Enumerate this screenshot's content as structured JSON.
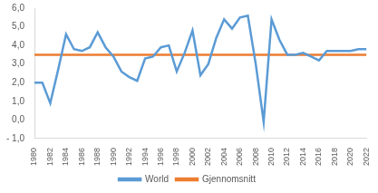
{
  "chart_data": {
    "type": "line",
    "categories": [
      1980,
      null,
      1982,
      null,
      1984,
      null,
      1986,
      null,
      1988,
      null,
      1990,
      null,
      1992,
      null,
      1994,
      null,
      1996,
      null,
      1998,
      null,
      2000,
      null,
      2002,
      null,
      2004,
      null,
      2006,
      null,
      2008,
      null,
      2010,
      null,
      2012,
      null,
      2014,
      null,
      2016,
      null,
      2018,
      null,
      2020,
      null,
      2022
    ],
    "series": [
      {
        "name": "World",
        "color": "#5b9bd5",
        "values": [
          2.0,
          2.0,
          0.9,
          2.7,
          4.6,
          3.8,
          3.7,
          3.9,
          4.7,
          3.9,
          3.4,
          2.6,
          2.3,
          2.1,
          3.3,
          3.4,
          3.9,
          4.0,
          2.6,
          3.6,
          4.8,
          2.4,
          3.0,
          4.4,
          5.4,
          4.9,
          5.5,
          5.6,
          3.0,
          -0.1,
          5.4,
          4.3,
          3.5,
          3.5,
          3.6,
          3.4,
          3.2,
          3.7,
          3.7,
          3.7,
          3.7,
          3.8,
          3.8
        ]
      },
      {
        "name": "Gjennomsnitt",
        "color": "#ed7d31",
        "values": [
          3.5,
          3.5,
          3.5,
          3.5,
          3.5,
          3.5,
          3.5,
          3.5,
          3.5,
          3.5,
          3.5,
          3.5,
          3.5,
          3.5,
          3.5,
          3.5,
          3.5,
          3.5,
          3.5,
          3.5,
          3.5,
          3.5,
          3.5,
          3.5,
          3.5,
          3.5,
          3.5,
          3.5,
          3.5,
          3.5,
          3.5,
          3.5,
          3.5,
          3.5,
          3.5,
          3.5,
          3.5,
          3.5,
          3.5,
          3.5,
          3.5,
          3.5,
          3.5
        ]
      }
    ],
    "ylim": [
      -1,
      6
    ],
    "yticks": [
      {
        "value": -1,
        "label": "- 1,0"
      },
      {
        "value": 0,
        "label": "0,0"
      },
      {
        "value": 1,
        "label": "1,0"
      },
      {
        "value": 2,
        "label": "2,0"
      },
      {
        "value": 3,
        "label": "3,0"
      },
      {
        "value": 4,
        "label": "4,0"
      },
      {
        "value": 5,
        "label": "5,0"
      },
      {
        "value": 6,
        "label": "6,0"
      }
    ],
    "grid": false,
    "legend": "bottom"
  }
}
